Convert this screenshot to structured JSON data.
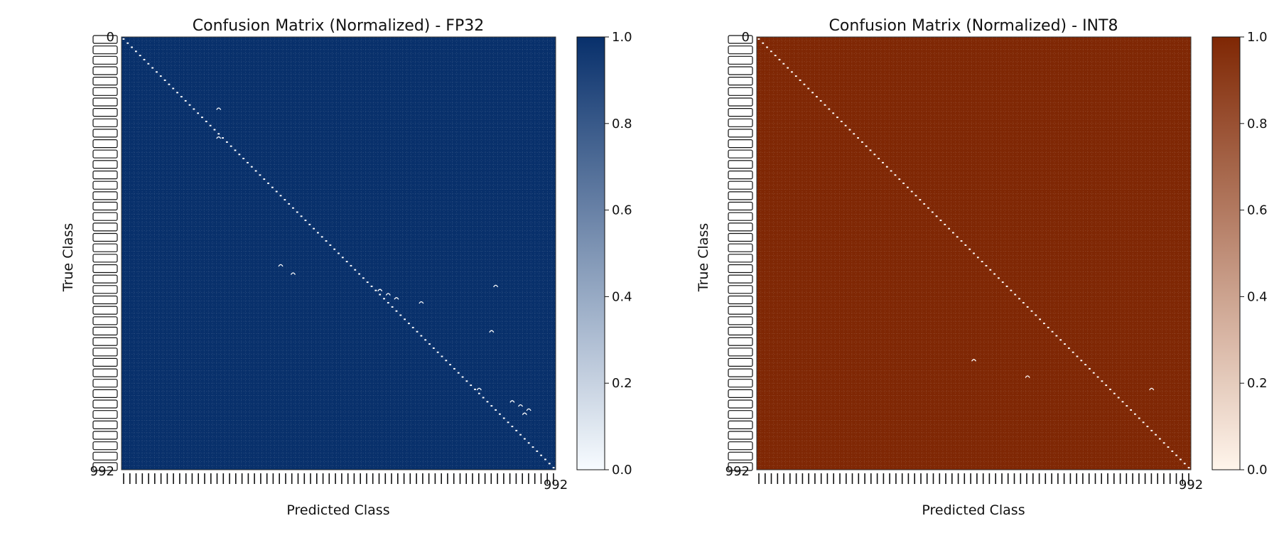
{
  "chart_data": [
    {
      "type": "heatmap",
      "title": "Confusion Matrix (Normalized) - FP32",
      "xlabel": "Predicted Class",
      "ylabel": "True Class",
      "y_first_tick": "0",
      "y_last_tick": "992",
      "x_last_tick": "992",
      "cell_count": 105,
      "default_cell_value": 1.0,
      "colormap": "Blues",
      "color_min": "#f7fbff",
      "color_max": "#08306b",
      "colorbar": {
        "ticks": [
          "0.0",
          "0.2",
          "0.4",
          "0.6",
          "0.8",
          "1.0"
        ],
        "range": [
          0,
          1
        ]
      },
      "off_diagonal": [
        [
          17,
          23
        ],
        [
          24,
          23
        ],
        [
          55,
          38
        ],
        [
          57,
          41
        ],
        [
          60,
          90
        ],
        [
          61,
          62
        ],
        [
          62,
          64
        ],
        [
          63,
          66
        ],
        [
          64,
          72
        ],
        [
          71,
          89
        ],
        [
          85,
          86
        ],
        [
          88,
          94
        ],
        [
          89,
          96
        ],
        [
          90,
          98
        ],
        [
          91,
          97
        ]
      ]
    },
    {
      "type": "heatmap",
      "title": "Confusion Matrix (Normalized) - INT8",
      "xlabel": "Predicted Class",
      "ylabel": "True Class",
      "y_first_tick": "0",
      "y_last_tick": "992",
      "x_last_tick": "992",
      "cell_count": 105,
      "default_cell_value": 1.0,
      "colormap": "Oranges",
      "color_min": "#fff5eb",
      "color_max": "#7f2704",
      "colorbar": {
        "ticks": [
          "0.0",
          "0.2",
          "0.4",
          "0.6",
          "0.8",
          "1.0"
        ],
        "range": [
          0,
          1
        ]
      },
      "off_diagonal": [
        [
          78,
          52
        ],
        [
          82,
          65
        ],
        [
          85,
          95
        ]
      ]
    }
  ]
}
